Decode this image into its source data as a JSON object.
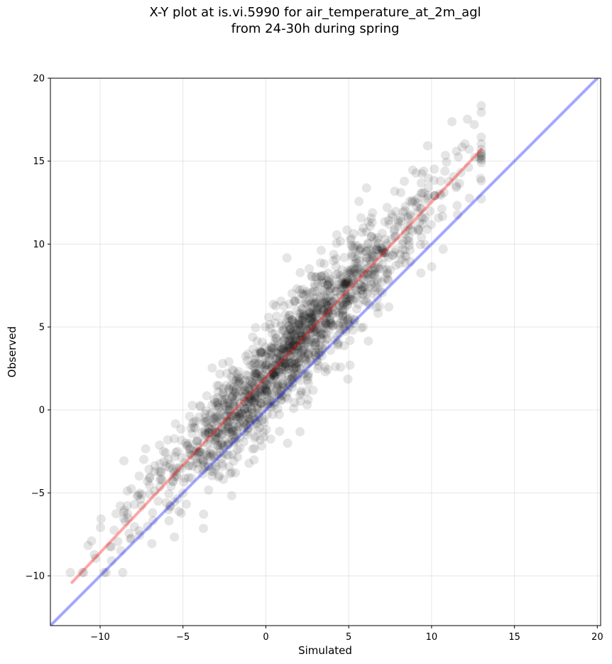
{
  "chart_data": {
    "type": "scatter",
    "title_lines": [
      "X-Y plot at is.vi.5990 for air_temperature_at_2m_agl",
      "from 24-30h during spring"
    ],
    "xlabel": "Simulated",
    "ylabel": "Observed",
    "xlim": [
      -13,
      20.2
    ],
    "ylim": [
      -13,
      20
    ],
    "xticks": [
      -10,
      -5,
      0,
      5,
      10,
      15,
      20
    ],
    "yticks": [
      -10,
      -5,
      0,
      5,
      10,
      15,
      20
    ],
    "grid": true,
    "series": [
      {
        "role": "points",
        "color": "#000000",
        "opacity": 0.1,
        "summary": {
          "n_points": 1600,
          "x_range": [
            -11.8,
            13.0
          ],
          "y_range": [
            -9.8,
            18.6
          ],
          "fit_slope": 1.06,
          "fit_intercept": 2.0,
          "residual_std": 1.6
        }
      },
      {
        "role": "one-to-one line",
        "color": "#0000ff",
        "x": [
          -13,
          20
        ],
        "y": [
          -13,
          20
        ]
      },
      {
        "role": "regression line",
        "color": "#ff0000",
        "x": [
          -11.7,
          13.0
        ],
        "y": [
          -10.4,
          15.7
        ]
      }
    ]
  }
}
